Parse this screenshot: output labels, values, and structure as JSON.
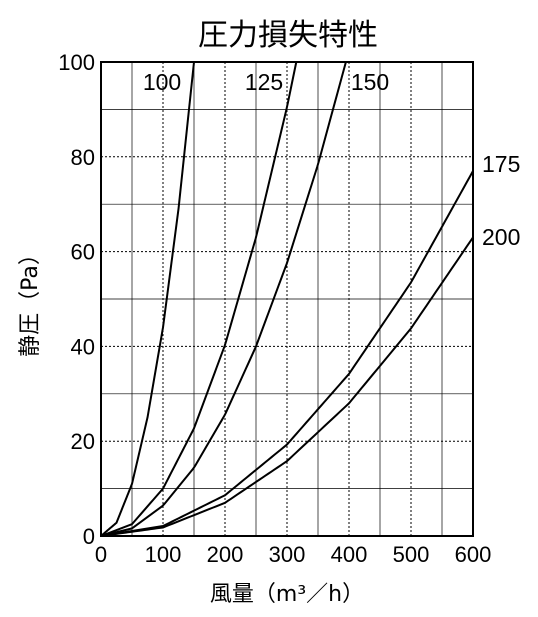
{
  "chart_data": {
    "type": "line",
    "title": "圧力損失特性",
    "xlabel": "風量（m³／h）",
    "ylabel": "静圧（Pa）",
    "xlim": [
      0,
      600
    ],
    "ylim": [
      0,
      100
    ],
    "xticks": [
      "0",
      "100",
      "200",
      "300",
      "400",
      "500",
      "600"
    ],
    "yticks": [
      "0",
      "20",
      "40",
      "60",
      "80",
      "100"
    ],
    "grid": true,
    "series": [
      {
        "name": "100",
        "x": [
          0,
          25,
          50,
          75,
          100,
          125,
          150
        ],
        "y": [
          0,
          2.8,
          11,
          25,
          44,
          69,
          100
        ]
      },
      {
        "name": "125",
        "x": [
          0,
          50,
          100,
          150,
          200,
          250,
          300,
          315
        ],
        "y": [
          0,
          2.5,
          10,
          22.7,
          40.3,
          63,
          90.5,
          100
        ]
      },
      {
        "name": "150",
        "x": [
          0,
          50,
          100,
          150,
          200,
          250,
          300,
          350,
          395
        ],
        "y": [
          0,
          1.6,
          6.4,
          14.4,
          25.6,
          40,
          57.6,
          78.4,
          100
        ]
      },
      {
        "name": "175",
        "x": [
          0,
          100,
          200,
          300,
          400,
          500,
          600
        ],
        "y": [
          0,
          2.1,
          8.6,
          19.3,
          34.2,
          53.5,
          77
        ]
      },
      {
        "name": "200",
        "x": [
          0,
          100,
          200,
          300,
          400,
          500,
          600
        ],
        "y": [
          0,
          1.8,
          7,
          15.8,
          28,
          43.8,
          63
        ]
      }
    ]
  }
}
